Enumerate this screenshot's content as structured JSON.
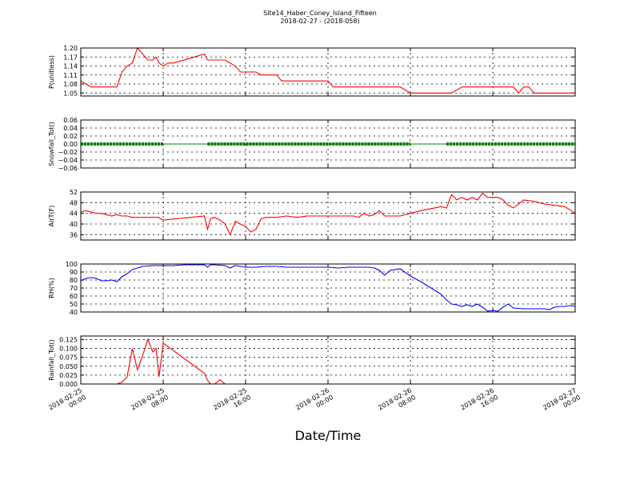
{
  "title": {
    "line1": "Site14_Haber_Coney_Island_Fifteen",
    "line2": "2018-02-27 - (2018-058)"
  },
  "xlabel": "Date/Time",
  "x_ticks": [
    {
      "l1": "2018-02-25",
      "l2": "00:00"
    },
    {
      "l1": "2018-02-25",
      "l2": "08:00"
    },
    {
      "l1": "2018-02-25",
      "l2": "16:00"
    },
    {
      "l1": "2018-02-26",
      "l2": "00:00"
    },
    {
      "l1": "2018-02-26",
      "l2": "08:00"
    },
    {
      "l1": "2018-02-26",
      "l2": "16:00"
    },
    {
      "l1": "2018-02-27",
      "l2": "00:00"
    }
  ],
  "colors": {
    "red": "#ff0000",
    "green": "#008000",
    "blue": "#0000ff"
  },
  "chart_data": [
    {
      "type": "line",
      "ylabel": "P(unitless)",
      "ylim": [
        1.04,
        1.2
      ],
      "yticks": [
        "1.05",
        "1.08",
        "1.11",
        "1.14",
        "1.17",
        "1.20"
      ],
      "color": "red",
      "series": [
        {
          "x": [
            0,
            0.5,
            1,
            1.5,
            2,
            2.5,
            3,
            3.5,
            4,
            4.5,
            5,
            5.5,
            6,
            6.5,
            7,
            7.3,
            7.6,
            8,
            8.5,
            9,
            12,
            12.3,
            12.6,
            13,
            14,
            14.5,
            15,
            15.5,
            16,
            16.5,
            17,
            17.5,
            18,
            18.5,
            19,
            19.5,
            20,
            20.5,
            21,
            22,
            23,
            24,
            24.5,
            25,
            25.5,
            26,
            27,
            28,
            28.5,
            29,
            29.5,
            30,
            30.5,
            31,
            32,
            33,
            34,
            34.5,
            35,
            35.5,
            36,
            37,
            38,
            39,
            40,
            41,
            42,
            42.5,
            43,
            43.5,
            44,
            44.5,
            45,
            46,
            47,
            48
          ],
          "y": [
            1.09,
            1.08,
            1.07,
            1.07,
            1.07,
            1.07,
            1.07,
            1.07,
            1.12,
            1.14,
            1.15,
            1.2,
            1.18,
            1.16,
            1.16,
            1.17,
            1.15,
            1.14,
            1.15,
            1.15,
            1.18,
            1.16,
            1.16,
            1.16,
            1.16,
            1.15,
            1.14,
            1.12,
            1.12,
            1.12,
            1.12,
            1.11,
            1.11,
            1.11,
            1.11,
            1.09,
            1.09,
            1.09,
            1.09,
            1.09,
            1.09,
            1.09,
            1.07,
            1.07,
            1.07,
            1.07,
            1.07,
            1.07,
            1.07,
            1.07,
            1.07,
            1.07,
            1.07,
            1.07,
            1.05,
            1.05,
            1.05,
            1.05,
            1.05,
            1.05,
            1.05,
            1.07,
            1.07,
            1.07,
            1.07,
            1.07,
            1.07,
            1.05,
            1.07,
            1.07,
            1.05,
            1.05,
            1.05,
            1.05,
            1.05,
            1.05
          ]
        }
      ]
    },
    {
      "type": "scatter",
      "ylabel": "Snowfall_Tot()",
      "ylim": [
        -0.06,
        0.06
      ],
      "yticks": [
        "−0.06",
        "−0.04",
        "−0.02",
        "0.00",
        "0.02",
        "0.04",
        "0.06"
      ],
      "color": "green",
      "series": [
        {
          "segments": [
            [
              0,
              8
            ],
            [
              12.3,
              32
            ],
            [
              35.5,
              48
            ]
          ],
          "value": 0.0
        }
      ]
    },
    {
      "type": "line",
      "ylabel": "AirT(F)",
      "ylim": [
        34,
        52
      ],
      "yticks": [
        "36",
        "40",
        "44",
        "48",
        "52"
      ],
      "color": "red",
      "series": [
        {
          "x": [
            0,
            0.5,
            1,
            1.5,
            2,
            2.5,
            3,
            3.5,
            4,
            4.5,
            5,
            5.5,
            6,
            6.5,
            7,
            7.5,
            8,
            12,
            12.3,
            12.6,
            13,
            13.5,
            14,
            14.5,
            15,
            15.5,
            16,
            16.5,
            17,
            17.5,
            18,
            19,
            20,
            21,
            22,
            23,
            24,
            25,
            25.5,
            26,
            26.5,
            27,
            27.5,
            28,
            28.5,
            29,
            29.5,
            30,
            31,
            33,
            35,
            35.5,
            36,
            36.5,
            37,
            37.5,
            38,
            38.5,
            39,
            39.5,
            40,
            40.5,
            41,
            41.5,
            42,
            43,
            44,
            45,
            46,
            47,
            48
          ],
          "y": [
            44.5,
            45,
            44.5,
            44,
            44,
            43.5,
            43,
            43.5,
            43,
            43,
            42.5,
            42.5,
            42.5,
            42.5,
            42.5,
            42.5,
            41.5,
            43,
            38,
            42,
            42.5,
            41.5,
            40,
            36,
            41,
            40,
            39,
            37,
            38,
            42,
            42.5,
            42.5,
            43,
            42.5,
            43,
            43,
            43,
            43,
            43,
            43,
            43,
            42.5,
            44,
            43,
            43.5,
            45,
            43,
            43,
            43,
            45,
            46.5,
            46,
            51,
            49,
            50,
            49,
            50,
            49,
            51.5,
            50,
            50,
            50,
            49,
            47,
            46,
            49,
            48.5,
            47.5,
            47,
            46.5,
            44
          ]
        }
      ]
    },
    {
      "type": "line",
      "ylabel": "RH(%)",
      "ylim": [
        40,
        100
      ],
      "yticks": [
        "40",
        "50",
        "60",
        "70",
        "80",
        "90",
        "100"
      ],
      "color": "blue",
      "series": [
        {
          "x": [
            0,
            0.5,
            1,
            1.5,
            2,
            2.5,
            3,
            3.5,
            4,
            4.5,
            5,
            5.5,
            6,
            7,
            8,
            9,
            10,
            11,
            12,
            12.3,
            12.6,
            13,
            14,
            14.5,
            15,
            15.5,
            16,
            17,
            18,
            19,
            20,
            21,
            22,
            23,
            24,
            25,
            26,
            27,
            28,
            28.5,
            29,
            29.5,
            30,
            31,
            32,
            33,
            34,
            35,
            35.5,
            36,
            36.5,
            37,
            37.5,
            38,
            38.5,
            39,
            39.5,
            40,
            40.5,
            41,
            41.5,
            42,
            43,
            44,
            45,
            45.5,
            46,
            46.5,
            47,
            47.5,
            48
          ],
          "y": [
            79,
            82,
            83,
            82,
            79,
            79,
            80,
            78,
            84,
            88,
            93,
            95,
            97,
            98,
            98,
            98,
            99,
            99,
            99,
            96,
            99,
            99,
            98,
            95,
            98,
            97,
            96,
            96,
            97,
            97,
            96,
            96,
            96,
            96,
            96,
            95,
            96,
            96,
            96,
            95,
            92,
            86,
            92,
            94,
            85,
            78,
            70,
            62,
            55,
            50,
            49,
            47,
            49,
            47,
            50,
            46,
            41,
            42,
            41,
            46,
            50,
            45,
            44,
            44,
            44,
            43,
            46,
            47,
            47,
            48,
            47
          ]
        }
      ]
    },
    {
      "type": "line",
      "ylabel": "Rainfall_Tot()",
      "ylim": [
        0,
        0.135
      ],
      "yticks": [
        "0.000",
        "0.025",
        "0.050",
        "0.075",
        "0.100",
        "0.125"
      ],
      "color": "red",
      "series": [
        {
          "x": [
            0,
            1,
            2,
            3,
            3.5,
            4,
            4.5,
            5,
            5.5,
            6,
            6.5,
            7,
            7.3,
            7.6,
            8,
            12,
            12.3,
            12.6,
            13,
            13.5,
            14,
            16,
            24,
            32,
            40,
            48
          ],
          "y": [
            0,
            0,
            0,
            0,
            0,
            0.005,
            0.02,
            0.1,
            0.04,
            0.08,
            0.125,
            0.09,
            0.1,
            0.02,
            0.115,
            0.03,
            0.01,
            0,
            0,
            0.012,
            0,
            0,
            0,
            0,
            0,
            0
          ]
        }
      ]
    }
  ]
}
